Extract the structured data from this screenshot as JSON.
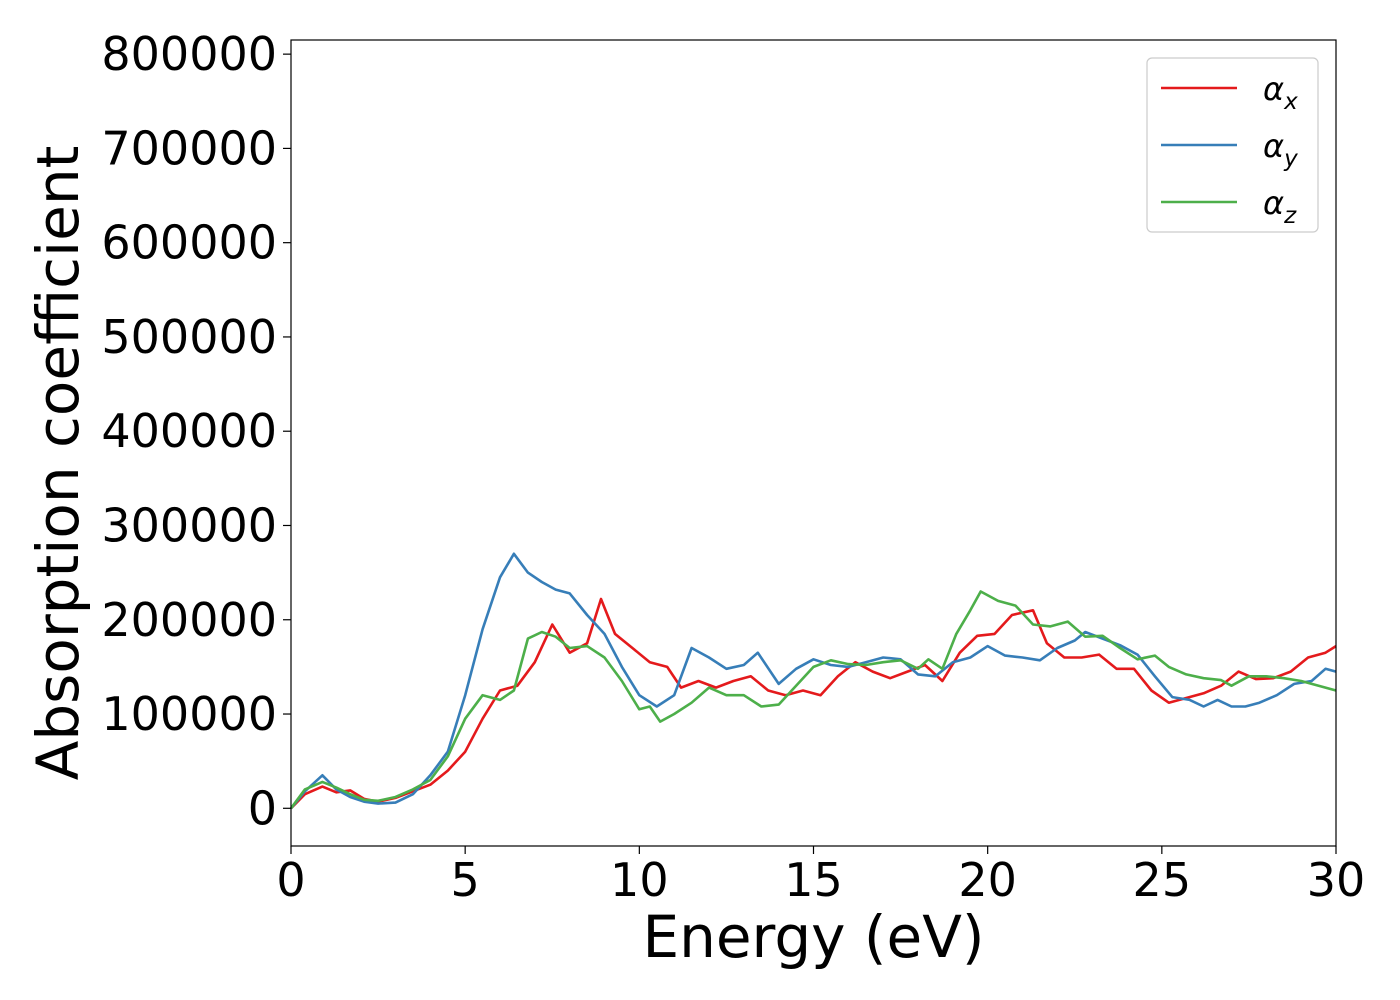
{
  "chart_data": {
    "type": "line",
    "title": "",
    "xlabel": "Energy (eV)",
    "ylabel": "Absorption coefficient",
    "xlim": [
      0,
      30
    ],
    "ylim": [
      -40000,
      815000
    ],
    "xticks": [
      0,
      5,
      10,
      15,
      20,
      25,
      30
    ],
    "yticks": [
      0,
      100000,
      200000,
      300000,
      400000,
      500000,
      600000,
      700000,
      800000
    ],
    "grid": false,
    "legend_position": "top-right",
    "series": [
      {
        "name": "α_x",
        "legend_base": "α",
        "legend_sub": "x",
        "color": "#e41a1c",
        "points": [
          [
            0,
            0
          ],
          [
            0.4,
            15000
          ],
          [
            0.9,
            23000
          ],
          [
            1.3,
            17000
          ],
          [
            1.7,
            19000
          ],
          [
            2.1,
            10000
          ],
          [
            2.5,
            7000
          ],
          [
            3.0,
            11000
          ],
          [
            3.5,
            18000
          ],
          [
            4.0,
            25000
          ],
          [
            4.5,
            40000
          ],
          [
            5.0,
            60000
          ],
          [
            5.5,
            95000
          ],
          [
            6.0,
            125000
          ],
          [
            6.5,
            130000
          ],
          [
            7.0,
            155000
          ],
          [
            7.5,
            195000
          ],
          [
            8.0,
            165000
          ],
          [
            8.5,
            175000
          ],
          [
            8.9,
            222000
          ],
          [
            9.3,
            185000
          ],
          [
            9.8,
            170000
          ],
          [
            10.3,
            155000
          ],
          [
            10.8,
            150000
          ],
          [
            11.2,
            128000
          ],
          [
            11.7,
            135000
          ],
          [
            12.2,
            128000
          ],
          [
            12.7,
            135000
          ],
          [
            13.2,
            140000
          ],
          [
            13.7,
            125000
          ],
          [
            14.2,
            120000
          ],
          [
            14.7,
            125000
          ],
          [
            15.2,
            120000
          ],
          [
            15.7,
            140000
          ],
          [
            16.2,
            155000
          ],
          [
            16.7,
            145000
          ],
          [
            17.2,
            138000
          ],
          [
            17.7,
            145000
          ],
          [
            18.2,
            152000
          ],
          [
            18.7,
            135000
          ],
          [
            19.2,
            165000
          ],
          [
            19.7,
            183000
          ],
          [
            20.2,
            185000
          ],
          [
            20.7,
            205000
          ],
          [
            21.3,
            210000
          ],
          [
            21.7,
            175000
          ],
          [
            22.2,
            160000
          ],
          [
            22.7,
            160000
          ],
          [
            23.2,
            163000
          ],
          [
            23.7,
            148000
          ],
          [
            24.2,
            148000
          ],
          [
            24.7,
            125000
          ],
          [
            25.2,
            112000
          ],
          [
            25.7,
            117000
          ],
          [
            26.2,
            122000
          ],
          [
            26.7,
            130000
          ],
          [
            27.2,
            145000
          ],
          [
            27.7,
            137000
          ],
          [
            28.2,
            138000
          ],
          [
            28.7,
            145000
          ],
          [
            29.2,
            160000
          ],
          [
            29.7,
            165000
          ],
          [
            30.0,
            172000
          ]
        ]
      },
      {
        "name": "α_y",
        "legend_base": "α",
        "legend_sub": "y",
        "color": "#377eb8",
        "points": [
          [
            0,
            0
          ],
          [
            0.4,
            18000
          ],
          [
            0.9,
            35000
          ],
          [
            1.3,
            20000
          ],
          [
            1.7,
            12000
          ],
          [
            2.1,
            7000
          ],
          [
            2.5,
            5000
          ],
          [
            3.0,
            6000
          ],
          [
            3.5,
            15000
          ],
          [
            4.0,
            35000
          ],
          [
            4.5,
            60000
          ],
          [
            5.0,
            120000
          ],
          [
            5.5,
            190000
          ],
          [
            6.0,
            245000
          ],
          [
            6.4,
            270000
          ],
          [
            6.8,
            250000
          ],
          [
            7.2,
            240000
          ],
          [
            7.6,
            232000
          ],
          [
            8.0,
            228000
          ],
          [
            8.5,
            205000
          ],
          [
            9.0,
            185000
          ],
          [
            9.5,
            150000
          ],
          [
            10.0,
            120000
          ],
          [
            10.5,
            108000
          ],
          [
            11.0,
            120000
          ],
          [
            11.5,
            170000
          ],
          [
            12.0,
            160000
          ],
          [
            12.5,
            148000
          ],
          [
            13.0,
            152000
          ],
          [
            13.4,
            165000
          ],
          [
            14.0,
            132000
          ],
          [
            14.5,
            148000
          ],
          [
            15.0,
            158000
          ],
          [
            15.5,
            152000
          ],
          [
            16.0,
            150000
          ],
          [
            16.5,
            155000
          ],
          [
            17.0,
            160000
          ],
          [
            17.5,
            158000
          ],
          [
            18.0,
            142000
          ],
          [
            18.5,
            140000
          ],
          [
            19.0,
            155000
          ],
          [
            19.5,
            160000
          ],
          [
            20.0,
            172000
          ],
          [
            20.5,
            162000
          ],
          [
            21.0,
            160000
          ],
          [
            21.5,
            157000
          ],
          [
            22.0,
            170000
          ],
          [
            22.5,
            178000
          ],
          [
            22.8,
            187000
          ],
          [
            23.3,
            180000
          ],
          [
            23.8,
            173000
          ],
          [
            24.3,
            163000
          ],
          [
            24.8,
            140000
          ],
          [
            25.3,
            118000
          ],
          [
            25.8,
            115000
          ],
          [
            26.2,
            108000
          ],
          [
            26.6,
            115000
          ],
          [
            27.0,
            108000
          ],
          [
            27.4,
            108000
          ],
          [
            27.8,
            112000
          ],
          [
            28.3,
            120000
          ],
          [
            28.8,
            132000
          ],
          [
            29.3,
            135000
          ],
          [
            29.7,
            148000
          ],
          [
            30.0,
            145000
          ]
        ]
      },
      {
        "name": "α_z",
        "legend_base": "α",
        "legend_sub": "z",
        "color": "#4daf4a",
        "points": [
          [
            0,
            0
          ],
          [
            0.4,
            20000
          ],
          [
            0.9,
            28000
          ],
          [
            1.3,
            22000
          ],
          [
            1.7,
            15000
          ],
          [
            2.1,
            9000
          ],
          [
            2.5,
            8000
          ],
          [
            3.0,
            12000
          ],
          [
            3.5,
            20000
          ],
          [
            4.0,
            30000
          ],
          [
            4.5,
            55000
          ],
          [
            5.0,
            95000
          ],
          [
            5.5,
            120000
          ],
          [
            6.0,
            115000
          ],
          [
            6.4,
            125000
          ],
          [
            6.8,
            180000
          ],
          [
            7.2,
            187000
          ],
          [
            7.6,
            182000
          ],
          [
            8.0,
            170000
          ],
          [
            8.5,
            172000
          ],
          [
            9.0,
            160000
          ],
          [
            9.5,
            135000
          ],
          [
            10.0,
            105000
          ],
          [
            10.3,
            108000
          ],
          [
            10.6,
            92000
          ],
          [
            11.0,
            100000
          ],
          [
            11.5,
            112000
          ],
          [
            12.0,
            128000
          ],
          [
            12.5,
            120000
          ],
          [
            13.0,
            120000
          ],
          [
            13.5,
            108000
          ],
          [
            14.0,
            110000
          ],
          [
            14.5,
            130000
          ],
          [
            15.0,
            150000
          ],
          [
            15.5,
            157000
          ],
          [
            16.0,
            153000
          ],
          [
            16.5,
            152000
          ],
          [
            17.0,
            155000
          ],
          [
            17.5,
            157000
          ],
          [
            18.0,
            148000
          ],
          [
            18.3,
            158000
          ],
          [
            18.7,
            148000
          ],
          [
            19.1,
            185000
          ],
          [
            19.5,
            210000
          ],
          [
            19.8,
            230000
          ],
          [
            20.3,
            220000
          ],
          [
            20.8,
            215000
          ],
          [
            21.3,
            195000
          ],
          [
            21.8,
            193000
          ],
          [
            22.3,
            198000
          ],
          [
            22.8,
            182000
          ],
          [
            23.3,
            183000
          ],
          [
            23.8,
            170000
          ],
          [
            24.3,
            158000
          ],
          [
            24.8,
            162000
          ],
          [
            25.2,
            150000
          ],
          [
            25.7,
            142000
          ],
          [
            26.2,
            138000
          ],
          [
            26.7,
            136000
          ],
          [
            27.0,
            130000
          ],
          [
            27.5,
            140000
          ],
          [
            28.0,
            140000
          ],
          [
            28.5,
            138000
          ],
          [
            29.0,
            135000
          ],
          [
            29.5,
            130000
          ],
          [
            30.0,
            125000
          ]
        ]
      }
    ]
  }
}
